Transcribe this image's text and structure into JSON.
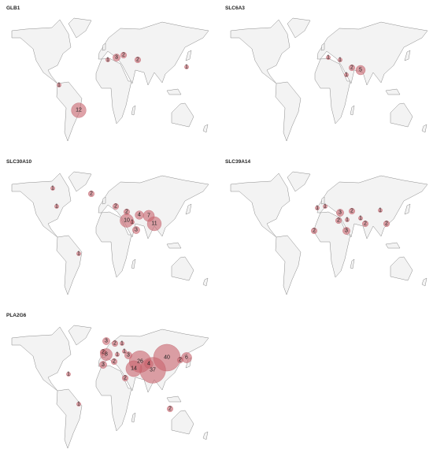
{
  "maps": [
    {
      "title": "GLB1",
      "counts": [
        1,
        3,
        2,
        2,
        1,
        1,
        12
      ]
    },
    {
      "title": "SLC6A3",
      "counts": [
        1,
        1,
        2,
        5,
        1
      ]
    },
    {
      "title": "SLC30A10",
      "counts": [
        1,
        2,
        2,
        2,
        1,
        10,
        1,
        4,
        7,
        11,
        3,
        1
      ]
    },
    {
      "title": "SLC39A14",
      "counts": [
        1,
        1,
        3,
        2,
        2,
        1,
        1,
        3,
        2,
        2,
        2,
        1
      ]
    },
    {
      "title": "PLA2G6",
      "counts": [
        3,
        2,
        1,
        1,
        2,
        1,
        3,
        8,
        2,
        3,
        26,
        4,
        40,
        2,
        6,
        14,
        37,
        2,
        1,
        1,
        2
      ]
    }
  ]
}
